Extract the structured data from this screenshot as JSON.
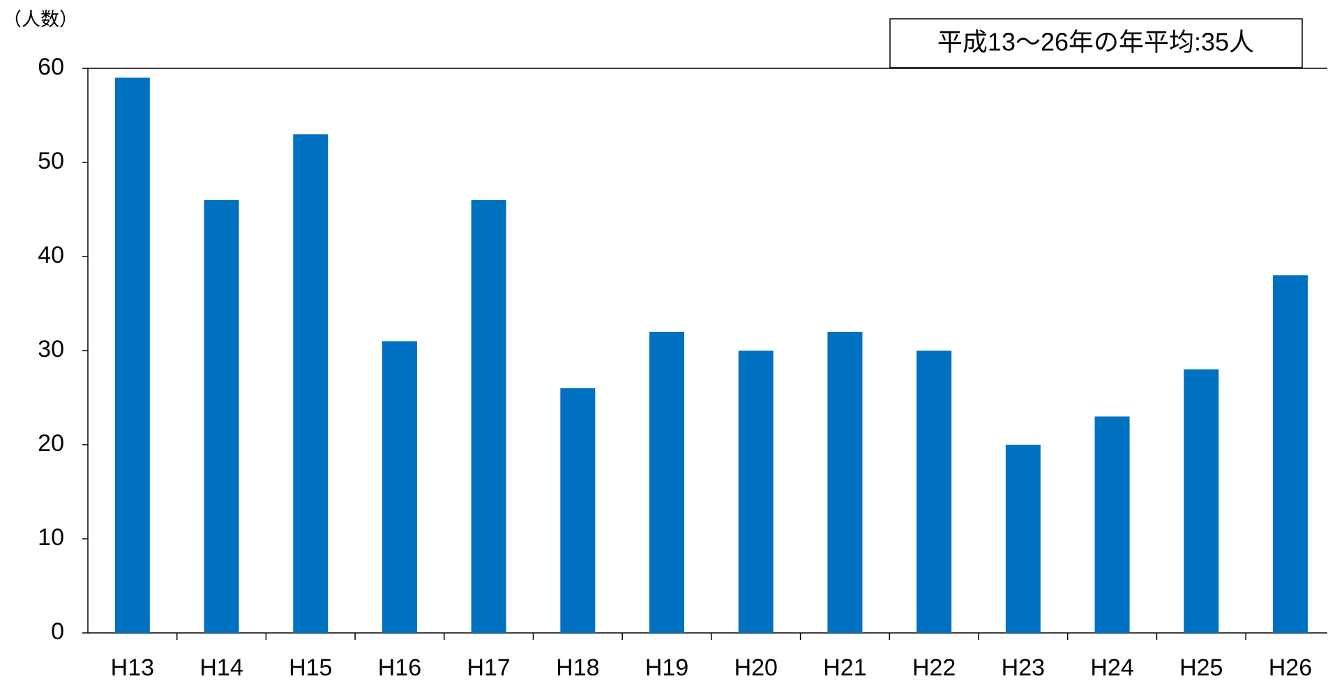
{
  "chart_data": {
    "type": "bar",
    "y_axis_label": "（人数）",
    "annotation": "平成13～26年の年平均:35人",
    "categories": [
      "H13",
      "H14",
      "H15",
      "H16",
      "H17",
      "H18",
      "H19",
      "H20",
      "H21",
      "H22",
      "H23",
      "H24",
      "H25",
      "H26"
    ],
    "values": [
      59,
      46,
      53,
      31,
      46,
      26,
      32,
      30,
      32,
      30,
      20,
      23,
      28,
      38
    ],
    "color": "#0070c0",
    "ylim": [
      0,
      60
    ],
    "yticks": [
      0,
      10,
      20,
      30,
      40,
      50,
      60
    ],
    "grid": false
  }
}
